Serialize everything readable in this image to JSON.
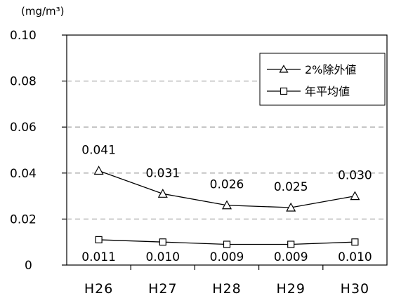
{
  "chart_data": {
    "type": "line",
    "unit": "(mg/m³)",
    "categories": [
      "H26",
      "H27",
      "H28",
      "H29",
      "H30"
    ],
    "ylim": [
      0,
      0.1
    ],
    "yticks": [
      "0",
      "0.02",
      "0.04",
      "0.06",
      "0.08",
      "0.10"
    ],
    "grid": true,
    "legend_position": "top-right",
    "series": [
      {
        "name": "2%除外値",
        "marker": "triangle",
        "values": [
          0.041,
          0.031,
          0.026,
          0.025,
          0.03
        ],
        "labels": [
          "0.041",
          "0.031",
          "0.026",
          "0.025",
          "0.030"
        ]
      },
      {
        "name": "年平均値",
        "marker": "square",
        "values": [
          0.011,
          0.01,
          0.009,
          0.009,
          0.01
        ],
        "labels": [
          "0.011",
          "0.010",
          "0.009",
          "0.009",
          "0.010"
        ]
      }
    ]
  }
}
